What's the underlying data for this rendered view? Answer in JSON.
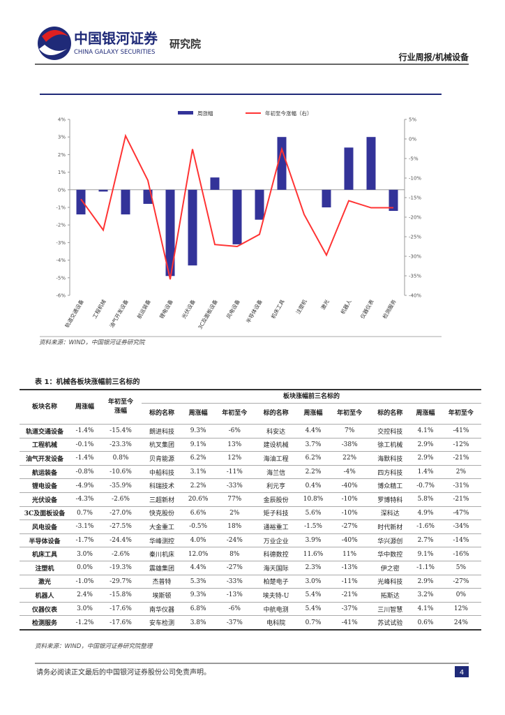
{
  "header": {
    "brand": "中国银河证券",
    "brand_en": "CHINA GALAXY SECURITIES",
    "institute": "研究院",
    "category": "行业周报/机械设备"
  },
  "chart_data": {
    "type": "combo",
    "categories": [
      "轨道交通设备",
      "工程机械",
      "油气开发设备",
      "航运装备",
      "锂电设备",
      "光伏设备",
      "3C及面板设备",
      "风电设备",
      "半导体设备",
      "机床工具",
      "注塑机",
      "激光",
      "机器人",
      "仪器仪表",
      "检测服务"
    ],
    "series": [
      {
        "name": "周涨幅",
        "color": "#333399",
        "values": [
          -1.4,
          -0.1,
          -1.4,
          -0.8,
          -4.9,
          -4.3,
          0.7,
          -3.1,
          -1.7,
          3.0,
          0.0,
          -1.0,
          2.4,
          3.0,
          -1.2
        ]
      },
      {
        "name": "年初至今涨幅（右）",
        "color": "#ff3333",
        "axis": "y2",
        "values": [
          -15.4,
          -23.3,
          0.8,
          -10.6,
          -35.9,
          -2.6,
          -27.0,
          -27.5,
          -24.4,
          -2.6,
          -19.3,
          -29.7,
          -15.8,
          -17.6,
          -17.6
        ]
      }
    ],
    "ylim": [
      -6,
      4
    ],
    "yticks": [
      {
        "value": 4,
        "label": "4%"
      },
      {
        "value": 3,
        "label": "3%"
      },
      {
        "value": 2,
        "label": "2%"
      },
      {
        "value": 1,
        "label": "1%"
      },
      {
        "value": 0,
        "label": "0%"
      },
      {
        "value": -1,
        "label": "-1%"
      },
      {
        "value": -2,
        "label": "-2%"
      },
      {
        "value": -3,
        "label": "-3%"
      },
      {
        "value": -4,
        "label": "-4%"
      },
      {
        "value": -5,
        "label": "-5%"
      },
      {
        "value": -6,
        "label": "-6%"
      }
    ],
    "y2lim": [
      -40,
      5
    ],
    "y2ticks": [
      {
        "value": 5,
        "label": "5%"
      },
      {
        "value": 0,
        "label": "0%"
      },
      {
        "value": -5,
        "label": "-5%"
      },
      {
        "value": -10,
        "label": "-10%"
      },
      {
        "value": -15,
        "label": "-15%"
      },
      {
        "value": -20,
        "label": "-20%"
      },
      {
        "value": -25,
        "label": "-25%"
      },
      {
        "value": -30,
        "label": "-30%"
      },
      {
        "value": -35,
        "label": "-35%"
      },
      {
        "value": -40,
        "label": "-40%"
      }
    ],
    "source": "资料来源：WIND，中国银河证券研究院"
  },
  "table": {
    "title": "表 1：机械各板块涨幅前三名标的",
    "columns": [
      "板块名称",
      "周涨幅",
      "年初至今涨幅"
    ],
    "group": "板块涨幅前三名标的",
    "subcolumns": [
      "标的名称",
      "周涨幅",
      "年初至今",
      "标的名称",
      "周涨幅",
      "年初至今",
      "标的名称",
      "周涨幅",
      "年初至今"
    ],
    "rows": [
      [
        "轨道交通设备",
        "-1.4%",
        "-15.4%",
        "朗进科技",
        "9.3%",
        "-6%",
        "科安达",
        "4.4%",
        "7%",
        "交控科技",
        "4.1%",
        "-41%"
      ],
      [
        "工程机械",
        "-0.1%",
        "-23.3%",
        "杭叉集团",
        "9.1%",
        "13%",
        "建设机械",
        "3.7%",
        "-38%",
        "徐工机械",
        "2.9%",
        "-12%"
      ],
      [
        "油气开发设备",
        "-1.4%",
        "0.8%",
        "贝肯能源",
        "6.2%",
        "12%",
        "海油工程",
        "6.2%",
        "22%",
        "海默科技",
        "2.9%",
        "-21%"
      ],
      [
        "航运装备",
        "-0.8%",
        "-10.6%",
        "中船科技",
        "3.1%",
        "-11%",
        "海兰信",
        "2.2%",
        "-4%",
        "四方科技",
        "1.4%",
        "2%"
      ],
      [
        "锂电设备",
        "-4.9%",
        "-35.9%",
        "科瑞技术",
        "2.2%",
        "-33%",
        "利元亨",
        "0.4%",
        "-40%",
        "博众精工",
        "-0.7%",
        "-31%"
      ],
      [
        "光伏设备",
        "-4.3%",
        "-2.6%",
        "三超新材",
        "20.6%",
        "77%",
        "金辰股份",
        "10.8%",
        "-10%",
        "罗博特科",
        "5.8%",
        "-21%"
      ],
      [
        "3C及面板设备",
        "0.7%",
        "-27.0%",
        "快克股份",
        "6.6%",
        "2%",
        "矩子科技",
        "5.6%",
        "-10%",
        "深科达",
        "4.9%",
        "-47%"
      ],
      [
        "风电设备",
        "-3.1%",
        "-27.5%",
        "大金重工",
        "-0.5%",
        "18%",
        "通裕重工",
        "-1.5%",
        "-27%",
        "时代新材",
        "-1.6%",
        "-34%"
      ],
      [
        "半导体设备",
        "-1.7%",
        "-24.4%",
        "华峰测控",
        "4.0%",
        "-24%",
        "万业企业",
        "3.9%",
        "-40%",
        "华兴源创",
        "2.7%",
        "-14%"
      ],
      [
        "机床工具",
        "3.0%",
        "-2.6%",
        "秦川机床",
        "12.0%",
        "8%",
        "科德数控",
        "11.6%",
        "11%",
        "华中数控",
        "9.1%",
        "-16%"
      ],
      [
        "注塑机",
        "0.0%",
        "-19.3%",
        "震雄集团",
        "4.4%",
        "-27%",
        "海天国际",
        "2.3%",
        "-13%",
        "伊之密",
        "-1.1%",
        "5%"
      ],
      [
        "激光",
        "-1.0%",
        "-29.7%",
        "杰普特",
        "5.3%",
        "-33%",
        "柏楚电子",
        "3.0%",
        "-11%",
        "光峰科技",
        "2.9%",
        "-27%"
      ],
      [
        "机器人",
        "2.4%",
        "-15.8%",
        "埃斯顿",
        "9.3%",
        "-13%",
        "埃夫特-U",
        "5.4%",
        "-21%",
        "拓斯达",
        "3.2%",
        "0%"
      ],
      [
        "仪器仪表",
        "3.0%",
        "-17.6%",
        "南华仪器",
        "6.8%",
        "-6%",
        "中航电测",
        "5.4%",
        "-37%",
        "三川智慧",
        "4.1%",
        "12%"
      ],
      [
        "检测服务",
        "-1.2%",
        "-17.6%",
        "安车检测",
        "3.8%",
        "-37%",
        "电科院",
        "0.7%",
        "-41%",
        "苏试试验",
        "0.6%",
        "24%"
      ]
    ],
    "source": "资料来源：WIND，中国银河证券研究院整理"
  },
  "footer": {
    "disclaimer": "请务必阅读正文最后的中国银河证券股份公司免责声明。",
    "page": "4"
  }
}
